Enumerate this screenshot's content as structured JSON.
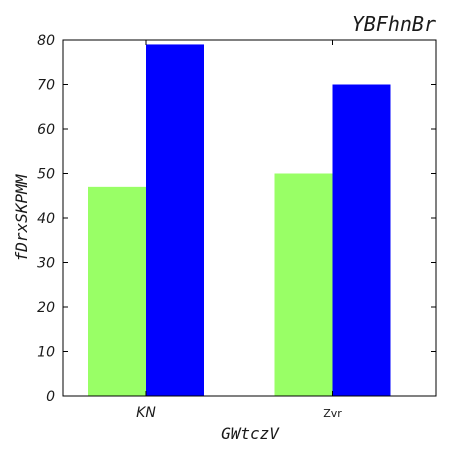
{
  "chart_data": {
    "type": "bar",
    "title": "YBFhnBr",
    "xlabel": "GWtczV",
    "ylabel": "fDrxSKPMM",
    "categories": [
      "KN",
      "Zvr"
    ],
    "series": [
      {
        "values": [
          47,
          50
        ],
        "color": "#99ff66"
      },
      {
        "values": [
          79,
          70
        ],
        "color": "#0000ff"
      }
    ],
    "ylim": [
      0,
      80
    ],
    "yticks": [
      0,
      10,
      20,
      30,
      40,
      50,
      60,
      70,
      80
    ],
    "grid": false,
    "legend": "none"
  }
}
